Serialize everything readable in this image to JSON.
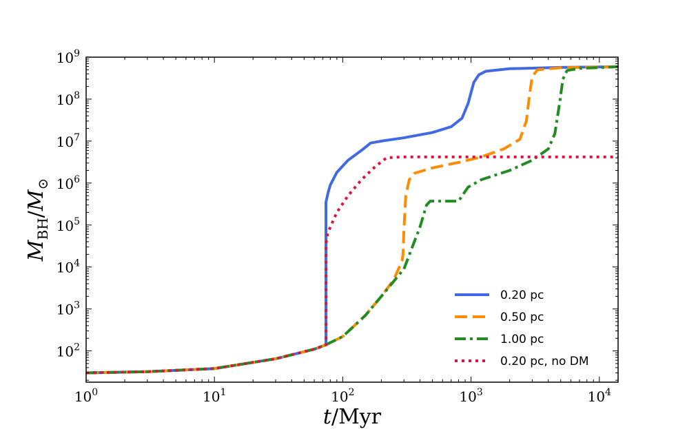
{
  "chart_data": {
    "type": "line",
    "xscale": "log",
    "yscale": "log",
    "xlim": [
      1,
      14000
    ],
    "ylim": [
      18,
      1000000000
    ],
    "xlabel": {
      "italic": "t",
      "rest": "/Myr"
    },
    "ylabel": {
      "main": "M",
      "sub": "BH",
      "sep": "/",
      "main2": "M",
      "sub2": "⊙"
    },
    "x_ticks": [
      {
        "value": 1,
        "base": "10",
        "exp": "0"
      },
      {
        "value": 10,
        "base": "10",
        "exp": "1"
      },
      {
        "value": 100,
        "base": "10",
        "exp": "2"
      },
      {
        "value": 1000,
        "base": "10",
        "exp": "3"
      },
      {
        "value": 10000,
        "base": "10",
        "exp": "4"
      }
    ],
    "y_ticks": [
      {
        "value": 100,
        "base": "10",
        "exp": "2"
      },
      {
        "value": 1000,
        "base": "10",
        "exp": "3"
      },
      {
        "value": 10000,
        "base": "10",
        "exp": "4"
      },
      {
        "value": 100000,
        "base": "10",
        "exp": "5"
      },
      {
        "value": 1000000,
        "base": "10",
        "exp": "6"
      },
      {
        "value": 10000000,
        "base": "10",
        "exp": "7"
      },
      {
        "value": 100000000,
        "base": "10",
        "exp": "8"
      },
      {
        "value": 1000000000,
        "base": "10",
        "exp": "9"
      }
    ],
    "legend_position": "lower-right",
    "series": [
      {
        "name": "0.20 pc",
        "color": "#4169E1",
        "dash": "solid",
        "points": [
          [
            1,
            30
          ],
          [
            3,
            32
          ],
          [
            10,
            38
          ],
          [
            30,
            65
          ],
          [
            60,
            110
          ],
          [
            74,
            140
          ],
          [
            74,
            350000
          ],
          [
            77,
            600000
          ],
          [
            80,
            900000
          ],
          [
            90,
            1800000
          ],
          [
            110,
            3500000
          ],
          [
            140,
            6000000
          ],
          [
            165,
            9000000
          ],
          [
            200,
            10000000
          ],
          [
            300,
            12000000
          ],
          [
            500,
            16000000
          ],
          [
            700,
            22000000
          ],
          [
            850,
            35000000
          ],
          [
            950,
            80000000
          ],
          [
            1050,
            250000000
          ],
          [
            1150,
            380000000
          ],
          [
            1300,
            460000000
          ],
          [
            2000,
            530000000
          ],
          [
            5000,
            570000000
          ],
          [
            14000,
            590000000
          ]
        ]
      },
      {
        "name": "0.50 pc",
        "color": "#FF8C00",
        "dash": "dashed",
        "points": [
          [
            1,
            30
          ],
          [
            3,
            32
          ],
          [
            10,
            38
          ],
          [
            30,
            65
          ],
          [
            60,
            110
          ],
          [
            74,
            140
          ],
          [
            100,
            220
          ],
          [
            150,
            700
          ],
          [
            200,
            2000
          ],
          [
            250,
            5000
          ],
          [
            290,
            14000
          ],
          [
            295,
            20000
          ],
          [
            300,
            80000
          ],
          [
            310,
            500000
          ],
          [
            330,
            1200000
          ],
          [
            360,
            1700000
          ],
          [
            500,
            2300000
          ],
          [
            800,
            3100000
          ],
          [
            1200,
            4200000
          ],
          [
            1800,
            6500000
          ],
          [
            2400,
            11000000
          ],
          [
            2700,
            30000000
          ],
          [
            2850,
            120000000
          ],
          [
            3000,
            350000000
          ],
          [
            3300,
            500000000
          ],
          [
            5000,
            560000000
          ],
          [
            14000,
            590000000
          ]
        ]
      },
      {
        "name": "1.00 pc",
        "color": "#228B22",
        "dash": "dashdot",
        "points": [
          [
            1,
            30
          ],
          [
            3,
            32
          ],
          [
            10,
            38
          ],
          [
            30,
            65
          ],
          [
            60,
            110
          ],
          [
            74,
            140
          ],
          [
            100,
            220
          ],
          [
            150,
            700
          ],
          [
            200,
            2000
          ],
          [
            300,
            9000
          ],
          [
            400,
            90000
          ],
          [
            450,
            300000
          ],
          [
            480,
            370000
          ],
          [
            600,
            370000
          ],
          [
            800,
            370000
          ],
          [
            860,
            520000
          ],
          [
            950,
            800000
          ],
          [
            1200,
            1200000
          ],
          [
            2000,
            2000000
          ],
          [
            3000,
            3500000
          ],
          [
            4000,
            6500000
          ],
          [
            4500,
            15000000
          ],
          [
            4900,
            80000000
          ],
          [
            5200,
            300000000
          ],
          [
            5600,
            480000000
          ],
          [
            7000,
            540000000
          ],
          [
            14000,
            590000000
          ]
        ]
      },
      {
        "name": "0.20 pc, no DM",
        "color": "#DC143C",
        "dash": "dotted",
        "points": [
          [
            1,
            30
          ],
          [
            3,
            32
          ],
          [
            10,
            38
          ],
          [
            30,
            65
          ],
          [
            60,
            110
          ],
          [
            74,
            140
          ],
          [
            74,
            35000
          ],
          [
            76,
            60000
          ],
          [
            80,
            90000
          ],
          [
            90,
            200000
          ],
          [
            110,
            500000
          ],
          [
            140,
            1200000
          ],
          [
            180,
            2500000
          ],
          [
            220,
            4000000
          ],
          [
            300,
            4200000
          ],
          [
            1000,
            4200000
          ],
          [
            14000,
            4200000
          ]
        ]
      }
    ]
  }
}
